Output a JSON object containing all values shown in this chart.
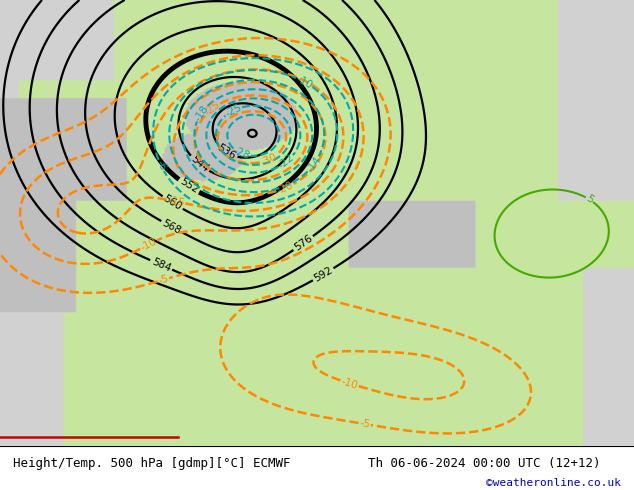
{
  "title_left": "Height/Temp. 500 hPa [gdmp][°C] ECMWF",
  "title_right": "Th 06-06-2024 00:00 UTC (12+12)",
  "watermark": "©weatheronline.co.uk",
  "bg_land_r": 0.78,
  "bg_land_g": 0.9,
  "bg_land_b": 0.62,
  "bg_sea_r": 0.82,
  "bg_sea_g": 0.82,
  "bg_sea_b": 0.82,
  "bg_gray_r": 0.75,
  "bg_gray_g": 0.75,
  "bg_gray_b": 0.75,
  "color_height": "black",
  "color_temp_neg": "#ff8800",
  "color_temp_pos": "#44aa00",
  "color_cyan": "#00aaaa",
  "color_red": "#cc0000",
  "watermark_color": "#0000cc",
  "footer_bg": "#ffffff"
}
